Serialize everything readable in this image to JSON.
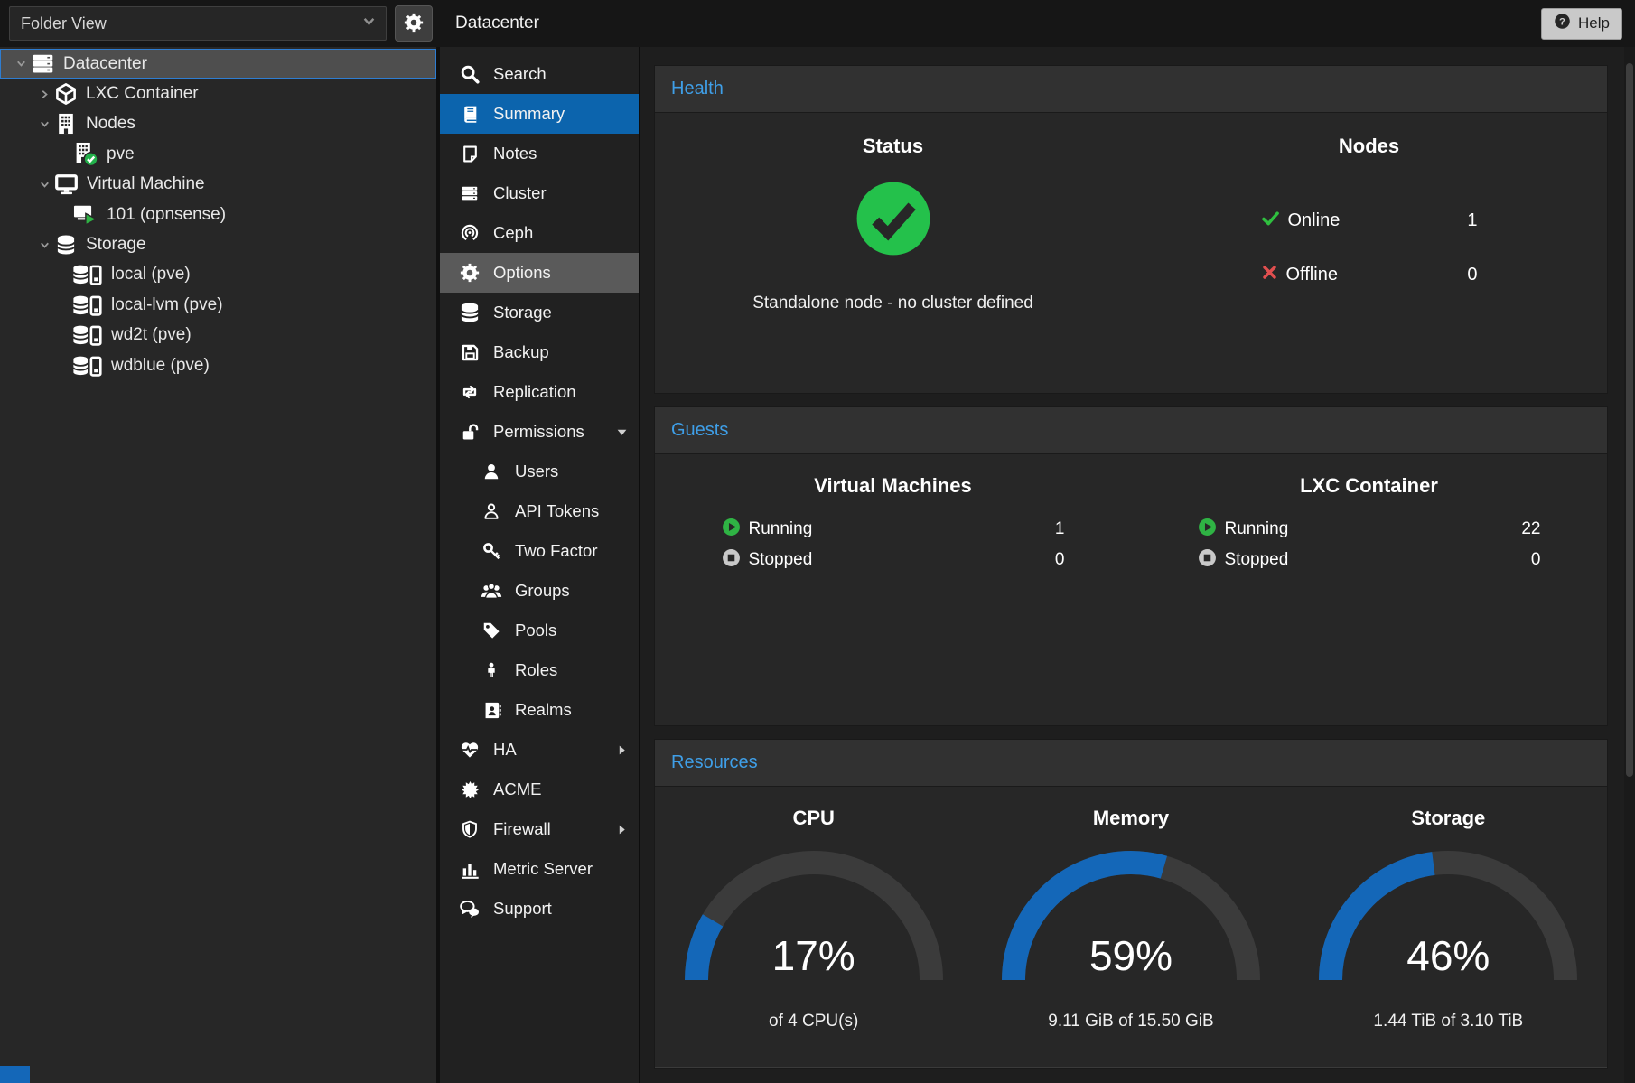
{
  "topbar": {
    "view_selector": {
      "value": "Folder View",
      "icon": "chevron-down-small"
    },
    "settings_icon": "gear",
    "help_button": {
      "label": "Help",
      "icon": "question-circle"
    }
  },
  "tree": {
    "items": [
      {
        "label": "Datacenter",
        "level": 0,
        "icon": "server",
        "expand": "expanded",
        "selected": true
      },
      {
        "label": "LXC Container",
        "level": 1,
        "icon": "cube",
        "expand": "collapsed"
      },
      {
        "label": "Nodes",
        "level": 1,
        "icon": "building",
        "expand": "expanded"
      },
      {
        "label": "pve",
        "level": 2,
        "icon": "building-check"
      },
      {
        "label": "Virtual Machine",
        "level": 1,
        "icon": "monitor",
        "expand": "expanded"
      },
      {
        "label": "101 (opnsense)",
        "level": 2,
        "icon": "monitor-play"
      },
      {
        "label": "Storage",
        "level": 1,
        "icon": "database",
        "expand": "expanded"
      },
      {
        "label": "local (pve)",
        "level": 2,
        "icon": "database-drive"
      },
      {
        "label": "local-lvm (pve)",
        "level": 2,
        "icon": "database-drive"
      },
      {
        "label": "wd2t (pve)",
        "level": 2,
        "icon": "database-drive"
      },
      {
        "label": "wdblue (pve)",
        "level": 2,
        "icon": "database-drive"
      }
    ]
  },
  "nav": {
    "title": "Datacenter",
    "items": [
      {
        "label": "Search",
        "icon": "search"
      },
      {
        "label": "Summary",
        "icon": "book",
        "state": "selected"
      },
      {
        "label": "Notes",
        "icon": "note"
      },
      {
        "label": "Cluster",
        "icon": "cluster"
      },
      {
        "label": "Ceph",
        "icon": "ceph"
      },
      {
        "label": "Options",
        "icon": "gear",
        "state": "hover"
      },
      {
        "label": "Storage",
        "icon": "database"
      },
      {
        "label": "Backup",
        "icon": "floppy"
      },
      {
        "label": "Replication",
        "icon": "replication"
      },
      {
        "label": "Permissions",
        "icon": "unlock",
        "caret": "down"
      },
      {
        "label": "Users",
        "icon": "user",
        "sub": true
      },
      {
        "label": "API Tokens",
        "icon": "user-outline",
        "sub": true
      },
      {
        "label": "Two Factor",
        "icon": "key",
        "sub": true
      },
      {
        "label": "Groups",
        "icon": "users",
        "sub": true
      },
      {
        "label": "Pools",
        "icon": "tag",
        "sub": true
      },
      {
        "label": "Roles",
        "icon": "person",
        "sub": true
      },
      {
        "label": "Realms",
        "icon": "address-book",
        "sub": true
      },
      {
        "label": "HA",
        "icon": "heartbeat",
        "caret": "right"
      },
      {
        "label": "ACME",
        "icon": "burst"
      },
      {
        "label": "Firewall",
        "icon": "shield",
        "caret": "right"
      },
      {
        "label": "Metric Server",
        "icon": "bar-chart"
      },
      {
        "label": "Support",
        "icon": "comments"
      }
    ]
  },
  "health": {
    "title": "Health",
    "status": {
      "heading": "Status",
      "icon": "check-circle-big",
      "message": "Standalone node - no cluster defined"
    },
    "nodes": {
      "heading": "Nodes",
      "rows": [
        {
          "icon": "check",
          "label": "Online",
          "value": "1"
        },
        {
          "icon": "cross",
          "label": "Offline",
          "value": "0"
        }
      ]
    }
  },
  "guests": {
    "title": "Guests",
    "columns": [
      {
        "heading": "Virtual Machines",
        "rows": [
          {
            "icon": "play",
            "label": "Running",
            "value": "1"
          },
          {
            "icon": "stop",
            "label": "Stopped",
            "value": "0"
          }
        ]
      },
      {
        "heading": "LXC Container",
        "rows": [
          {
            "icon": "play",
            "label": "Running",
            "value": "22"
          },
          {
            "icon": "stop",
            "label": "Stopped",
            "value": "0"
          }
        ]
      }
    ]
  },
  "resources": {
    "title": "Resources",
    "gauges": [
      {
        "heading": "CPU",
        "percent": 17,
        "percent_label": "17%",
        "detail": "of 4 CPU(s)"
      },
      {
        "heading": "Memory",
        "percent": 59,
        "percent_label": "59%",
        "detail": "9.11 GiB of 15.50 GiB"
      },
      {
        "heading": "Storage",
        "percent": 46,
        "percent_label": "46%",
        "detail": "1.44 TiB of 3.10 TiB"
      }
    ]
  },
  "colors": {
    "accent_blue": "#3f9fe8",
    "selection_blue": "#0c64ad",
    "gauge_blue": "#1467b8",
    "gauge_track": "#3b3b3b",
    "status_green": "#24c14b",
    "status_red": "#e14f4f"
  }
}
